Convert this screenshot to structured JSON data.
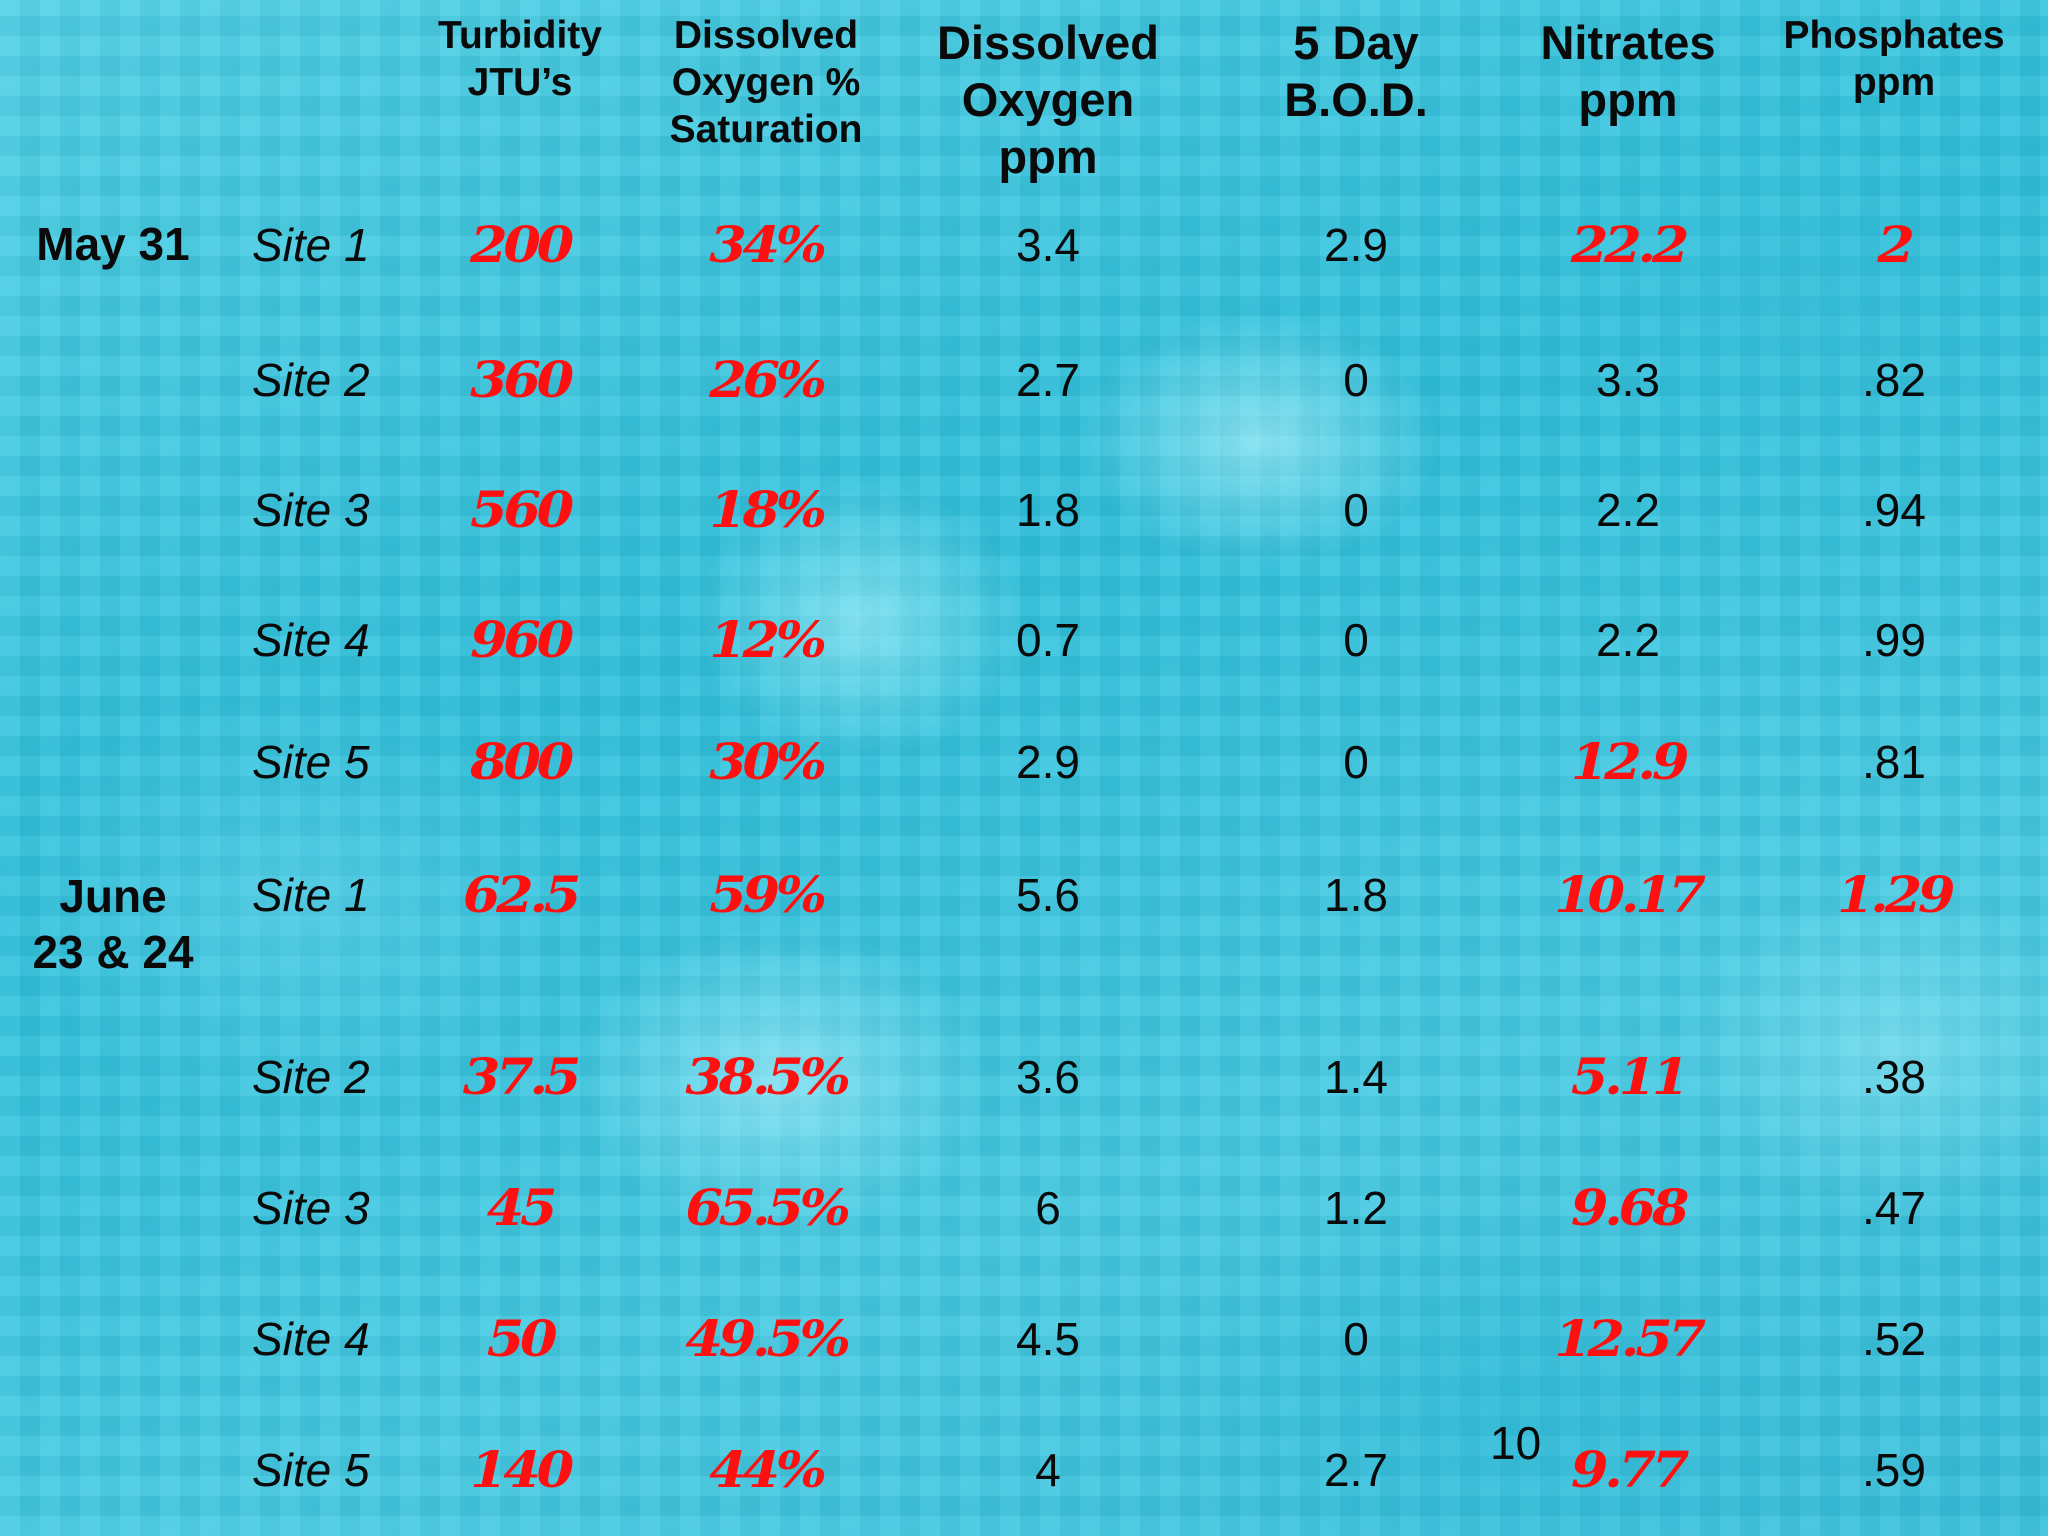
{
  "headers": [
    {
      "text": "Turbidity\nJTU’s",
      "size": "sm"
    },
    {
      "text": "Dissolved\nOxygen %\nSaturation",
      "size": "sm"
    },
    {
      "text": "Dissolved\nOxygen\nppm",
      "size": "lg"
    },
    {
      "text": "5 Day\nB.O.D.",
      "size": "lg"
    },
    {
      "text": "Nitrates\nppm",
      "size": "lg"
    },
    {
      "text": "Phosphates\nppm",
      "size": "sm"
    }
  ],
  "groups": [
    {
      "date": "May 31",
      "rows": [
        {
          "site": "Site 1",
          "values": [
            {
              "v": "200",
              "red": true
            },
            {
              "v": "34%",
              "red": true
            },
            {
              "v": "3.4"
            },
            {
              "v": "2.9"
            },
            {
              "v": "22.2",
              "red": true
            },
            {
              "v": "2",
              "red": true
            }
          ]
        },
        {
          "site": "Site 2",
          "values": [
            {
              "v": "360",
              "red": true
            },
            {
              "v": "26%",
              "red": true
            },
            {
              "v": "2.7"
            },
            {
              "v": "0"
            },
            {
              "v": "3.3"
            },
            {
              "v": ".82"
            }
          ]
        },
        {
          "site": "Site 3",
          "values": [
            {
              "v": "560",
              "red": true
            },
            {
              "v": "18%",
              "red": true
            },
            {
              "v": "1.8"
            },
            {
              "v": "0"
            },
            {
              "v": "2.2"
            },
            {
              "v": ".94"
            }
          ]
        },
        {
          "site": "Site 4",
          "values": [
            {
              "v": "960",
              "red": true
            },
            {
              "v": "12%",
              "red": true
            },
            {
              "v": "0.7"
            },
            {
              "v": "0"
            },
            {
              "v": "2.2"
            },
            {
              "v": ".99"
            }
          ]
        },
        {
          "site": "Site 5",
          "values": [
            {
              "v": "800",
              "red": true
            },
            {
              "v": "30%",
              "red": true
            },
            {
              "v": "2.9"
            },
            {
              "v": "0"
            },
            {
              "v": "12.9",
              "red": true
            },
            {
              "v": ".81"
            }
          ]
        }
      ]
    },
    {
      "date": "June\n23 & 24",
      "rows": [
        {
          "site": "Site 1",
          "values": [
            {
              "v": "62.5",
              "red": true
            },
            {
              "v": "59%",
              "red": true
            },
            {
              "v": "5.6"
            },
            {
              "v": "1.8"
            },
            {
              "v": "10.17",
              "red": true
            },
            {
              "v": "1.29",
              "red": true
            }
          ]
        },
        {
          "site": "Site 2",
          "values": [
            {
              "v": "37.5",
              "red": true
            },
            {
              "v": "38.5%",
              "red": true
            },
            {
              "v": "3.6"
            },
            {
              "v": "1.4"
            },
            {
              "v": "5.11",
              "red": true
            },
            {
              "v": ".38"
            }
          ]
        },
        {
          "site": "Site 3",
          "values": [
            {
              "v": "45",
              "red": true
            },
            {
              "v": "65.5%",
              "red": true
            },
            {
              "v": "6"
            },
            {
              "v": "1.2"
            },
            {
              "v": "9.68",
              "red": true
            },
            {
              "v": ".47"
            }
          ]
        },
        {
          "site": "Site 4",
          "values": [
            {
              "v": "50",
              "red": true
            },
            {
              "v": "49.5%",
              "red": true
            },
            {
              "v": "4.5"
            },
            {
              "v": "0"
            },
            {
              "v": "12.57",
              "red": true
            },
            {
              "v": ".52"
            }
          ]
        },
        {
          "site": "Site 5",
          "values": [
            {
              "v": "140",
              "red": true
            },
            {
              "v": "44%",
              "red": true
            },
            {
              "v": "4"
            },
            {
              "v": "2.7"
            },
            {
              "v": "9.77",
              "red": true
            },
            {
              "v": ".59"
            }
          ]
        }
      ]
    }
  ],
  "page_number": "10",
  "colors": {
    "highlight": "#ff1010",
    "text": "#0a0a0a",
    "background": "#3ec6e0"
  }
}
